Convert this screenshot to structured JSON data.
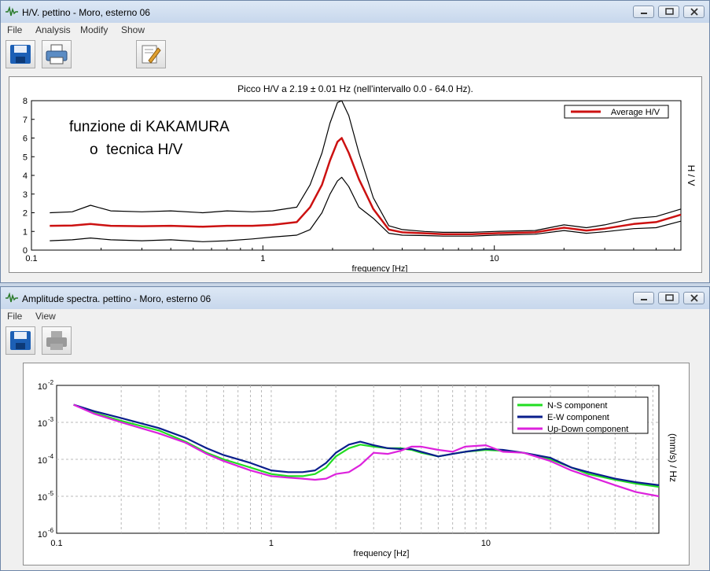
{
  "window1": {
    "title": "H/V. pettino - Moro, esterno 06",
    "menu": [
      "File",
      "Analysis",
      "Modify",
      "Show"
    ],
    "toolbar_icons": [
      "save-icon",
      "print-icon",
      "edit-icon"
    ],
    "plot_title": "Picco H/V a 2.19 ± 0.01 Hz (nell'intervallo 0.0 - 64.0 Hz).",
    "annotation_line1": "funzione di KAKAMURA",
    "annotation_line2": "o  tecnica H/V"
  },
  "window2": {
    "title": "Amplitude spectra. pettino - Moro, esterno 06",
    "menu": [
      "File",
      "View"
    ],
    "toolbar_icons": [
      "save-icon",
      "print-icon-disabled"
    ]
  },
  "chart_data": [
    {
      "type": "line",
      "title": "Picco H/V a 2.19 ± 0.01 Hz (nell'intervallo 0.0 - 64.0 Hz).",
      "xlabel": "frequency [Hz]",
      "ylabel": "H / V",
      "x_scale": "log",
      "xlim": [
        0.1,
        64
      ],
      "ylim": [
        0,
        8
      ],
      "x_ticks": [
        "0.1",
        "1",
        "10"
      ],
      "y_ticks": [
        "0",
        "1",
        "2",
        "3",
        "4",
        "5",
        "6",
        "7",
        "8"
      ],
      "legend_position": "top-right",
      "x": [
        0.12,
        0.15,
        0.18,
        0.22,
        0.3,
        0.4,
        0.55,
        0.7,
        0.9,
        1.1,
        1.4,
        1.6,
        1.8,
        1.95,
        2.1,
        2.19,
        2.35,
        2.6,
        3.0,
        3.5,
        4.0,
        5.0,
        6.0,
        8.0,
        10,
        15,
        20,
        25,
        30,
        40,
        50,
        64
      ],
      "series": [
        {
          "name": "Average H/V",
          "color": "#cc1111",
          "values": [
            1.3,
            1.32,
            1.4,
            1.3,
            1.28,
            1.3,
            1.25,
            1.3,
            1.3,
            1.35,
            1.5,
            2.3,
            3.5,
            4.8,
            5.8,
            6.0,
            5.2,
            3.8,
            2.2,
            1.1,
            0.95,
            0.9,
            0.85,
            0.85,
            0.9,
            0.95,
            1.2,
            1.05,
            1.15,
            1.4,
            1.5,
            1.9
          ]
        },
        {
          "color": "#000000",
          "values": [
            2.0,
            2.05,
            2.4,
            2.1,
            2.05,
            2.1,
            2.0,
            2.1,
            2.05,
            2.1,
            2.3,
            3.5,
            5.2,
            6.8,
            7.9,
            8.0,
            7.2,
            5.2,
            2.8,
            1.3,
            1.1,
            1.0,
            0.95,
            0.95,
            1.0,
            1.05,
            1.35,
            1.2,
            1.35,
            1.7,
            1.8,
            2.2
          ]
        },
        {
          "color": "#000000",
          "values": [
            0.5,
            0.55,
            0.65,
            0.55,
            0.5,
            0.55,
            0.45,
            0.5,
            0.6,
            0.7,
            0.8,
            1.1,
            2.0,
            3.0,
            3.7,
            3.9,
            3.4,
            2.3,
            1.7,
            0.9,
            0.8,
            0.78,
            0.75,
            0.75,
            0.8,
            0.85,
            1.05,
            0.9,
            0.98,
            1.15,
            1.2,
            1.55
          ]
        }
      ]
    },
    {
      "type": "line",
      "xlabel": "frequency [Hz]",
      "ylabel": "(mm/s) / Hz",
      "x_scale": "log",
      "y_scale": "log",
      "xlim": [
        0.1,
        64
      ],
      "ylim": [
        1e-06,
        0.01
      ],
      "x_ticks": [
        "0.1",
        "1",
        "10"
      ],
      "y_ticks": [
        "10 -6",
        "10 -5",
        "10 -4",
        "10 -3",
        "10 -2"
      ],
      "legend_position": "top-right",
      "x": [
        0.12,
        0.15,
        0.2,
        0.3,
        0.4,
        0.5,
        0.6,
        0.8,
        1.0,
        1.2,
        1.4,
        1.6,
        1.8,
        2.0,
        2.3,
        2.6,
        3.0,
        3.5,
        4.0,
        4.5,
        5.0,
        6.0,
        7.0,
        8.0,
        10,
        12,
        15,
        20,
        25,
        30,
        40,
        50,
        64
      ],
      "series": [
        {
          "name": "N-S component",
          "color": "#22dd22",
          "values": [
            0.003,
            0.0018,
            0.0011,
            0.0006,
            0.0003,
            0.00015,
            0.0001,
            6e-05,
            4e-05,
            3.5e-05,
            3.5e-05,
            4e-05,
            6e-05,
            0.00012,
            0.0002,
            0.00025,
            0.00022,
            0.0002,
            0.0002,
            0.00018,
            0.00015,
            0.00012,
            0.00014,
            0.00016,
            0.00018,
            0.00017,
            0.00015,
            0.0001,
            6e-05,
            4e-05,
            2.8e-05,
            2.2e-05,
            1.8e-05
          ]
        },
        {
          "name": "E-W component",
          "color": "#0a1e8c",
          "values": [
            0.003,
            0.002,
            0.0013,
            0.0007,
            0.00038,
            0.0002,
            0.00013,
            8e-05,
            5e-05,
            4.5e-05,
            4.5e-05,
            5e-05,
            8e-05,
            0.00015,
            0.00025,
            0.0003,
            0.00024,
            0.0002,
            0.00019,
            0.00019,
            0.00016,
            0.00012,
            0.00014,
            0.00016,
            0.00019,
            0.00018,
            0.00015,
            0.00011,
            6e-05,
            4.5e-05,
            3e-05,
            2.4e-05,
            2e-05
          ]
        },
        {
          "name": "Up-Down component",
          "color": "#dd22dd",
          "values": [
            0.003,
            0.0017,
            0.001,
            0.0005,
            0.00028,
            0.00014,
            9e-05,
            5e-05,
            3.5e-05,
            3.2e-05,
            3e-05,
            2.8e-05,
            3e-05,
            4e-05,
            4.5e-05,
            7e-05,
            0.00015,
            0.00014,
            0.00017,
            0.00022,
            0.00022,
            0.00018,
            0.00016,
            0.00022,
            0.00024,
            0.00016,
            0.00015,
            9e-05,
            5e-05,
            3.5e-05,
            2e-05,
            1.3e-05,
            1e-05
          ]
        }
      ]
    }
  ]
}
